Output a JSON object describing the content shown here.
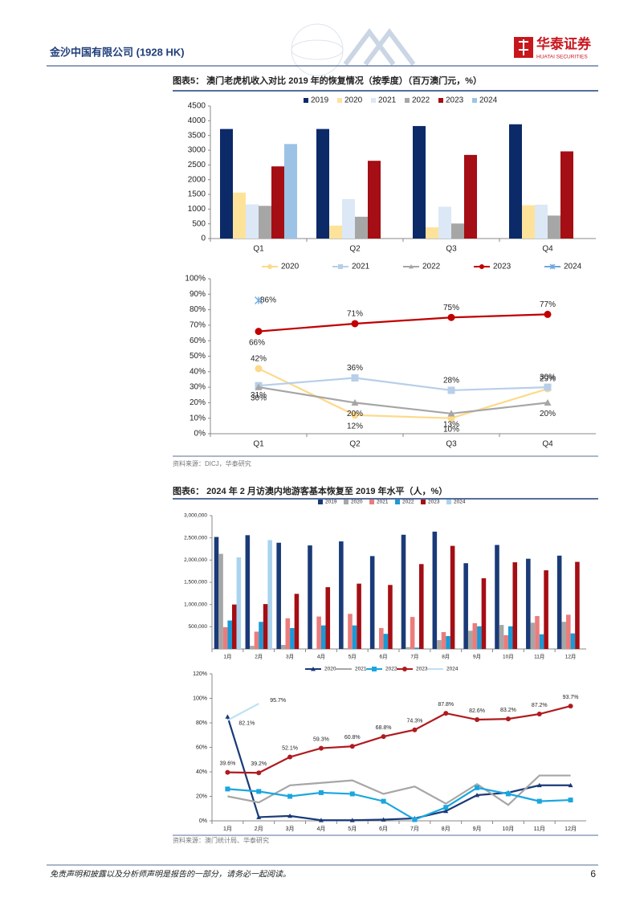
{
  "header": {
    "company": "金沙中国有限公司 (1928 HK)",
    "logo_cn": "华泰证券",
    "logo_en": "HUATAI SECURITIES"
  },
  "figures": [
    {
      "title": "图表5：  澳门老虎机收入对比 2019 年的恢复情况（按季度）（百万澳门元，%）",
      "source": "资料来源：DICJ，华泰研究"
    },
    {
      "title": "图表6：  2024 年 2 月访澳内地游客基本恢复至 2019 年水平（人，%）",
      "source": "资料来源：澳门统计局、华泰研究"
    }
  ],
  "chart_data": [
    {
      "type": "bar",
      "categories": [
        "Q1",
        "Q2",
        "Q3",
        "Q4"
      ],
      "ylim": [
        0,
        4500
      ],
      "yticks": [
        0,
        500,
        1000,
        1500,
        2000,
        2500,
        3000,
        3500,
        4000,
        4500
      ],
      "grid": false,
      "legend": "top",
      "series": [
        {
          "name": "2019",
          "color": "#0c2a68",
          "values": [
            3720,
            3720,
            3820,
            3880
          ]
        },
        {
          "name": "2020",
          "color": "#fde29a",
          "values": [
            1560,
            440,
            380,
            1130
          ]
        },
        {
          "name": "2021",
          "color": "#dce8f5",
          "values": [
            1160,
            1340,
            1080,
            1150
          ]
        },
        {
          "name": "2022",
          "color": "#a6a6a6",
          "values": [
            1110,
            740,
            510,
            780
          ]
        },
        {
          "name": "2023",
          "color": "#a40e14",
          "values": [
            2450,
            2640,
            2840,
            2960
          ]
        },
        {
          "name": "2024",
          "color": "#9cc3e5",
          "values": [
            3210,
            null,
            null,
            null
          ]
        }
      ]
    },
    {
      "type": "line",
      "categories": [
        "Q1",
        "Q2",
        "Q3",
        "Q4"
      ],
      "ylim": [
        0,
        100
      ],
      "yticks": [
        {
          "value": 0,
          "label": "0%"
        },
        {
          "value": 10,
          "label": "10%"
        },
        {
          "value": 20,
          "label": "20%"
        },
        {
          "value": 30,
          "label": "30%"
        },
        {
          "value": 40,
          "label": "40%"
        },
        {
          "value": 50,
          "label": "50%"
        },
        {
          "value": 60,
          "label": "60%"
        },
        {
          "value": 70,
          "label": "70%"
        },
        {
          "value": 80,
          "label": "80%"
        },
        {
          "value": 90,
          "label": "90%"
        },
        {
          "value": 100,
          "label": "100%"
        }
      ],
      "grid": false,
      "legend": "top",
      "series": [
        {
          "name": "2020",
          "color": "#fdd98a",
          "marker": "circle",
          "values": [
            42,
            12,
            10,
            29
          ],
          "value_labels": [
            "42%",
            "12%",
            "10%",
            "29%"
          ]
        },
        {
          "name": "2021",
          "color": "#b7cfe8",
          "marker": "square",
          "values": [
            31,
            36,
            28,
            30
          ],
          "value_labels": [
            "31%",
            "36%",
            "28%",
            "30%"
          ]
        },
        {
          "name": "2022",
          "color": "#a6a6a6",
          "marker": "triangle",
          "values": [
            30,
            20,
            13,
            20
          ],
          "value_labels": [
            "30%",
            "20%",
            "13%",
            "20%"
          ]
        },
        {
          "name": "2023",
          "color": "#c00000",
          "marker": "circle",
          "values": [
            66,
            71,
            75,
            77
          ],
          "value_labels": [
            "66%",
            "71%",
            "75%",
            "77%"
          ]
        },
        {
          "name": "2024",
          "color": "#6fa8dc",
          "marker": "x",
          "values": [
            86,
            null,
            null,
            null
          ],
          "value_labels": [
            "86%",
            null,
            null,
            null
          ]
        }
      ]
    },
    {
      "type": "bar",
      "categories": [
        "1月",
        "2月",
        "3月",
        "4月",
        "5月",
        "6月",
        "7月",
        "8月",
        "9月",
        "10月",
        "11月",
        "12月"
      ],
      "ylim": [
        0,
        3000000
      ],
      "yticks": [
        {
          "value": 500000,
          "label": "500,000"
        },
        {
          "value": 1000000,
          "label": "1,000,000"
        },
        {
          "value": 1500000,
          "label": "1,500,000"
        },
        {
          "value": 2000000,
          "label": "2,000,000"
        },
        {
          "value": 2500000,
          "label": "2,500,000"
        },
        {
          "value": 3000000,
          "label": "3,000,000"
        }
      ],
      "grid": false,
      "legend": "top",
      "series": [
        {
          "name": "2019",
          "color": "#1a3a78",
          "values": [
            2520000,
            2560000,
            2390000,
            2330000,
            2420000,
            2090000,
            2570000,
            2640000,
            1930000,
            2340000,
            2030000,
            2100000
          ]
        },
        {
          "name": "2020",
          "color": "#a6a6a6",
          "values": [
            2140000,
            70000,
            90000,
            10000,
            20000,
            20000,
            40000,
            200000,
            410000,
            540000,
            590000,
            610000
          ]
        },
        {
          "name": "2021",
          "color": "#ec7c7c",
          "values": [
            490000,
            390000,
            690000,
            730000,
            790000,
            470000,
            720000,
            380000,
            580000,
            310000,
            740000,
            770000
          ]
        },
        {
          "name": "2022",
          "color": "#1a9ad6",
          "values": [
            640000,
            610000,
            470000,
            530000,
            530000,
            340000,
            30000,
            290000,
            510000,
            510000,
            330000,
            350000
          ]
        },
        {
          "name": "2023",
          "color": "#a40e14",
          "values": [
            1000000,
            1010000,
            1240000,
            1390000,
            1470000,
            1440000,
            1910000,
            2320000,
            1590000,
            1950000,
            1770000,
            1960000
          ]
        },
        {
          "name": "2024",
          "color": "#a9d3ee",
          "values": [
            2060000,
            2450000,
            null,
            null,
            null,
            null,
            null,
            null,
            null,
            null,
            null,
            null
          ]
        }
      ]
    },
    {
      "type": "line",
      "categories": [
        "1月",
        "2月",
        "3月",
        "4月",
        "5月",
        "6月",
        "7月",
        "8月",
        "9月",
        "10月",
        "11月",
        "12月"
      ],
      "ylim": [
        0,
        120
      ],
      "yticks": [
        {
          "value": 0,
          "label": "0%"
        },
        {
          "value": 20,
          "label": "20%"
        },
        {
          "value": 40,
          "label": "40%"
        },
        {
          "value": 60,
          "label": "60%"
        },
        {
          "value": 80,
          "label": "80%"
        },
        {
          "value": 100,
          "label": "100%"
        },
        {
          "value": 120,
          "label": "120%"
        }
      ],
      "grid": false,
      "legend": "top",
      "series": [
        {
          "name": "2020",
          "color": "#1a3a78",
          "marker": "triangle",
          "values": [
            85,
            3,
            4,
            0.5,
            0.5,
            1,
            2,
            8,
            21,
            23,
            29,
            29
          ]
        },
        {
          "name": "2021",
          "color": "#a6a6a6",
          "marker": "none",
          "values": [
            20,
            15,
            29,
            31,
            33,
            22,
            28,
            14,
            30,
            13,
            37,
            37
          ]
        },
        {
          "name": "2022",
          "color": "#1aa6e0",
          "marker": "square",
          "values": [
            26,
            24,
            20,
            23,
            22,
            16,
            1,
            11,
            27,
            22,
            16,
            17
          ]
        },
        {
          "name": "2023",
          "color": "#b01a1f",
          "marker": "circle",
          "values": [
            39.6,
            39.2,
            52.1,
            59.3,
            60.8,
            68.8,
            74.3,
            87.8,
            82.6,
            83.2,
            87.2,
            93.7
          ],
          "value_labels": [
            "39.6%",
            "39.2%",
            "52.1%",
            "59.3%",
            "60.8%",
            "68.8%",
            "74.3%",
            "87.8%",
            "82.6%",
            "83.2%",
            "87.2%",
            "93.7%"
          ]
        },
        {
          "name": "2024",
          "color": "#bfe0f5",
          "marker": "none",
          "values": [
            82.1,
            95.7,
            null,
            null,
            null,
            null,
            null,
            null,
            null,
            null,
            null,
            null
          ],
          "value_labels": [
            "82.1%",
            "95.7%",
            null,
            null,
            null,
            null,
            null,
            null,
            null,
            null,
            null,
            null
          ]
        }
      ]
    }
  ],
  "footer": {
    "disclaimer": "免责声明和披露以及分析师声明是报告的一部分，请务必一起阅读。",
    "page": "6"
  }
}
